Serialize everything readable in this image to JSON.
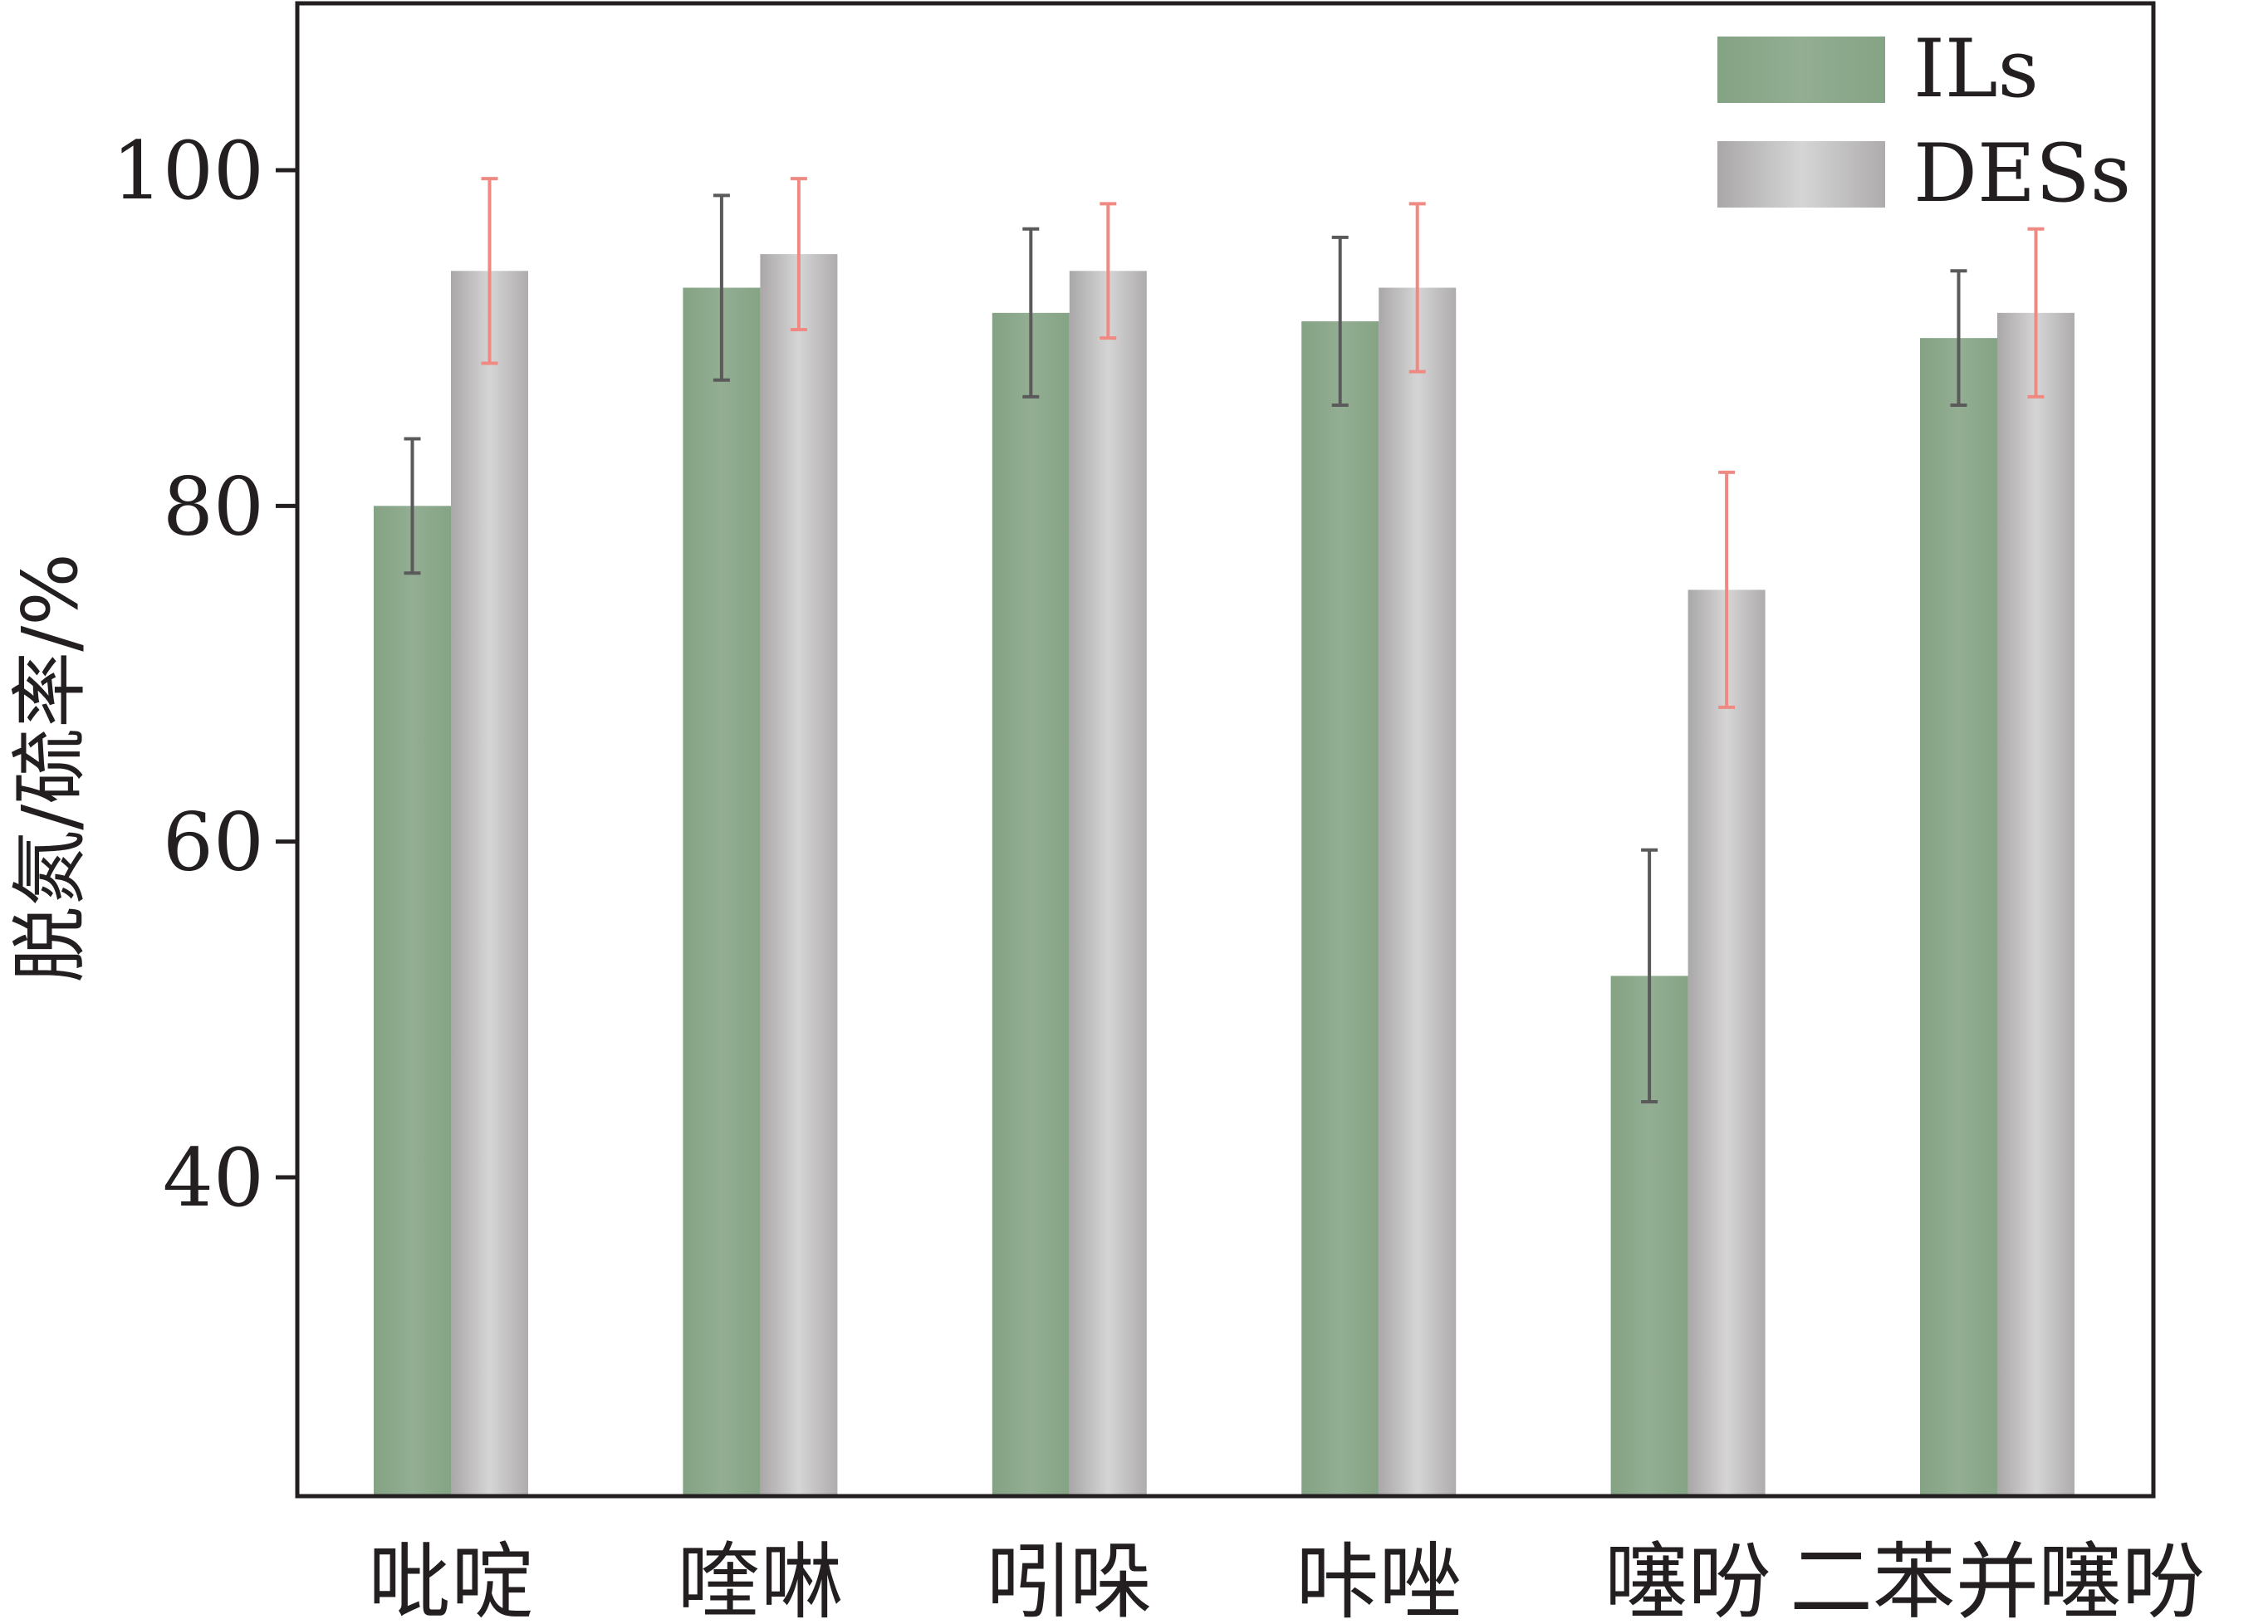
{
  "chart_data": {
    "type": "bar",
    "categories": [
      "吡啶",
      "喹啉",
      "吲哚",
      "咔唑",
      "噻吩",
      "二苯并噻吩"
    ],
    "series": [
      {
        "name": "ILs",
        "values": [
          80,
          93,
          91.5,
          91,
          52,
          90
        ],
        "errors": [
          4,
          5.5,
          5,
          5,
          7.5,
          4
        ],
        "color": "#8aa88a",
        "error_color": "#5a5a5a"
      },
      {
        "name": "DESs",
        "values": [
          94,
          95,
          94,
          93,
          75,
          91.5
        ],
        "errors": [
          5.5,
          4.5,
          4,
          5,
          7,
          5
        ],
        "color": "#b9b8b8",
        "error_color": "#ef8a83"
      }
    ],
    "ylabel": "脱氮/硫率/%",
    "yticks": [
      40,
      60,
      80,
      100
    ],
    "ylim": [
      22,
      110
    ],
    "legend_position": "top-right"
  }
}
